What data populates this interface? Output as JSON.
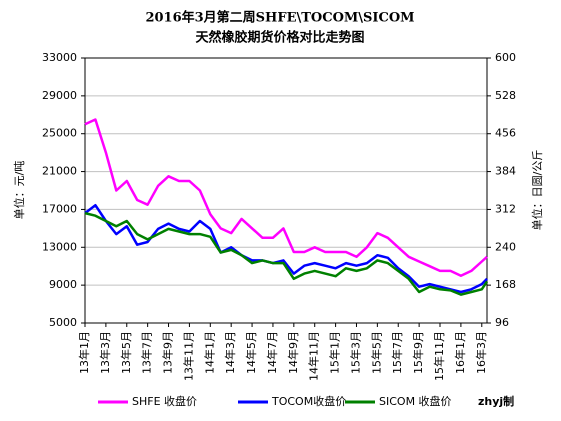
{
  "chart_data": {
    "type": "line",
    "title": "2016年3月第二周SHFE\\TOCOM\\SICOM",
    "subtitle": "天然橡胶期货价格对比走势图",
    "y_label": "单位：元/吨",
    "y2_label": "单位：日圆/公斤",
    "annotation": "zhyj制",
    "x": [
      0,
      1,
      2,
      3,
      4,
      5,
      6,
      7,
      8,
      9,
      10,
      11,
      12,
      13,
      14,
      15,
      16,
      17,
      18,
      19,
      20,
      21,
      22,
      23,
      24,
      25,
      26,
      27,
      28,
      29,
      30,
      31,
      32,
      33,
      34,
      35,
      36,
      37,
      38,
      38.5
    ],
    "xlim": [
      0,
      38.5
    ],
    "xticks": [
      {
        "value": 0,
        "label": "13年1月"
      },
      {
        "value": 2,
        "label": "13年3月"
      },
      {
        "value": 4,
        "label": "13年5月"
      },
      {
        "value": 6,
        "label": "13年7月"
      },
      {
        "value": 8,
        "label": "13年9月"
      },
      {
        "value": 10,
        "label": "13年11月"
      },
      {
        "value": 12,
        "label": "14年1月"
      },
      {
        "value": 14,
        "label": "14年3月"
      },
      {
        "value": 16,
        "label": "14年5月"
      },
      {
        "value": 18,
        "label": "14年7月"
      },
      {
        "value": 20,
        "label": "14年9月"
      },
      {
        "value": 22,
        "label": "14年11月"
      },
      {
        "value": 24,
        "label": "15年1月"
      },
      {
        "value": 26,
        "label": "15年3月"
      },
      {
        "value": 28,
        "label": "15年5月"
      },
      {
        "value": 30,
        "label": "15年7月"
      },
      {
        "value": 32,
        "label": "15年9月"
      },
      {
        "value": 34,
        "label": "15年11月"
      },
      {
        "value": 36,
        "label": "16年1月"
      },
      {
        "value": 38,
        "label": "16年3月"
      }
    ],
    "ylim": [
      5000,
      33000
    ],
    "yticks": [
      5000,
      9000,
      13000,
      17000,
      21000,
      25000,
      29000,
      33000
    ],
    "y2lim": [
      96,
      600
    ],
    "y2ticks": [
      96,
      168,
      240,
      312,
      384,
      456,
      528,
      600
    ],
    "grid": true,
    "legend": "bottom",
    "series": [
      {
        "name": "SHFE 收盘价",
        "color": "#ff00ff",
        "axis": "y",
        "values": [
          26000,
          26500,
          23000,
          19000,
          20000,
          18000,
          17500,
          19500,
          20500,
          20000,
          20000,
          19000,
          16500,
          15000,
          14500,
          16000,
          15000,
          14000,
          14000,
          15000,
          12500,
          12500,
          13000,
          12500,
          12500,
          12500,
          12000,
          13000,
          14500,
          14000,
          13000,
          12000,
          11500,
          11000,
          10500,
          10500,
          10000,
          10500,
          11500,
          12000
        ]
      },
      {
        "name": "TOCOM收盘价",
        "color": "#0000ff",
        "axis": "y2",
        "values": [
          305,
          320,
          290,
          265,
          280,
          245,
          250,
          275,
          285,
          275,
          270,
          290,
          275,
          230,
          240,
          225,
          215,
          215,
          210,
          215,
          190,
          205,
          210,
          205,
          200,
          210,
          205,
          210,
          225,
          220,
          200,
          185,
          165,
          170,
          165,
          160,
          155,
          160,
          170,
          180
        ]
      },
      {
        "name": "SICOM 收盘价",
        "color": "#008000",
        "axis": "y2",
        "values": [
          305,
          300,
          290,
          280,
          290,
          265,
          255,
          265,
          275,
          270,
          265,
          265,
          260,
          230,
          235,
          225,
          210,
          215,
          210,
          210,
          180,
          190,
          195,
          190,
          185,
          200,
          195,
          200,
          215,
          210,
          195,
          180,
          155,
          165,
          160,
          158,
          150,
          155,
          160,
          175
        ]
      }
    ]
  }
}
